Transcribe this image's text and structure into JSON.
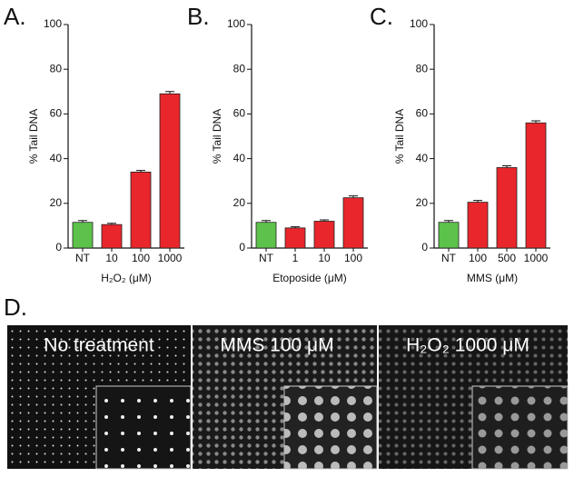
{
  "chart_data": [
    {
      "type": "bar",
      "panel": "A.",
      "ylabel": "% Tail DNA",
      "xlabel": "H₂O₂ (μM)",
      "categories": [
        "NT",
        "10",
        "100",
        "1000"
      ],
      "values": [
        11.5,
        10.5,
        34,
        69
      ],
      "errors": [
        0.8,
        0.6,
        0.7,
        1.0
      ],
      "colors": [
        "#5dc24b",
        "#e8262b",
        "#e8262b",
        "#e8262b"
      ],
      "ylim": [
        0,
        100
      ],
      "yticks": [
        0,
        20,
        40,
        60,
        80,
        100
      ]
    },
    {
      "type": "bar",
      "panel": "B.",
      "ylabel": "% Tail DNA",
      "xlabel": "Etoposide (μM)",
      "categories": [
        "NT",
        "1",
        "10",
        "100"
      ],
      "values": [
        11.5,
        9,
        12,
        22.5
      ],
      "errors": [
        0.8,
        0.5,
        0.6,
        0.8
      ],
      "colors": [
        "#5dc24b",
        "#e8262b",
        "#e8262b",
        "#e8262b"
      ],
      "ylim": [
        0,
        100
      ],
      "yticks": [
        0,
        20,
        40,
        60,
        80,
        100
      ]
    },
    {
      "type": "bar",
      "panel": "C.",
      "ylabel": "% Tail DNA",
      "xlabel": "MMS (μM)",
      "categories": [
        "NT",
        "100",
        "500",
        "1000"
      ],
      "values": [
        11.5,
        20.5,
        36,
        56
      ],
      "errors": [
        0.8,
        0.8,
        0.8,
        0.9
      ],
      "colors": [
        "#5dc24b",
        "#e8262b",
        "#e8262b",
        "#e8262b"
      ],
      "ylim": [
        0,
        100
      ],
      "yticks": [
        0,
        20,
        40,
        60,
        80,
        100
      ]
    }
  ],
  "panel_d": {
    "label": "D.",
    "images": [
      "No treatment",
      "MMS 100 μM",
      "H₂O₂ 1000 μM"
    ]
  }
}
